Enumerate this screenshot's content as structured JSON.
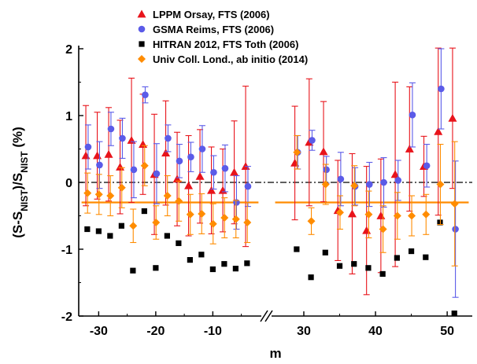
{
  "chart_data": {
    "type": "scatter",
    "title": "",
    "xlabel": "m",
    "ylabel": "(S-S_NIST)/S_NIST (%)",
    "ylabel_parts": {
      "lead": "(S-S",
      "sub1": "NIST",
      "mid": ")/S",
      "sub2": "NIST",
      "tail": " (%)"
    },
    "x_segments": [
      {
        "xlim": [
          -33.5,
          -1.5
        ],
        "ticks": [
          -30,
          -20,
          -10
        ],
        "tick_labels": [
          "-30",
          "-20",
          "-10"
        ]
      },
      {
        "xlim": [
          25.5,
          53.5
        ],
        "ticks": [
          30,
          40,
          50
        ],
        "tick_labels": [
          "30",
          "40",
          "50"
        ]
      }
    ],
    "axis_break": true,
    "ylim": [
      -2,
      2
    ],
    "yticks": [
      -2,
      -1,
      0,
      1,
      2
    ],
    "ytick_labels": [
      "-2",
      "-1",
      "0",
      "1",
      "2"
    ],
    "legend_position": "top-center",
    "reference_line": {
      "y": 0,
      "style": "dash-dot",
      "color": "#000000"
    },
    "mean_lines": [
      {
        "x_range": [
          -33,
          -2
        ],
        "y": -0.3,
        "color": "#FF8C00"
      },
      {
        "x_range": [
          26,
          53
        ],
        "y": -0.3,
        "color": "#FF8C00"
      }
    ],
    "series": [
      {
        "name": "LPPM Orsay,  FTS (2006)",
        "marker": "triangle",
        "color": "#E8141B",
        "x": [
          -32,
          -30,
          -28,
          -26,
          -24,
          -22,
          -20,
          -18,
          -16,
          -14,
          -12,
          -10,
          -8,
          -6,
          -4,
          29,
          31,
          33,
          35,
          37,
          39,
          41,
          43,
          45,
          47,
          49,
          51
        ],
        "y": [
          0.4,
          0.4,
          0.42,
          0.23,
          0.63,
          0.57,
          0.12,
          0.44,
          0.05,
          -0.05,
          0.09,
          -0.12,
          -0.12,
          0.15,
          0.24,
          0.29,
          0.6,
          0.46,
          -0.42,
          -0.47,
          -0.72,
          -0.5,
          0.12,
          0.5,
          0.24,
          0.76,
          0.96
        ],
        "err": [
          0.75,
          0.65,
          0.7,
          0.7,
          0.93,
          0.75,
          0.9,
          0.78,
          0.7,
          0.75,
          0.7,
          0.65,
          0.62,
          0.77,
          1.2,
          0.85,
          0.95,
          0.75,
          0.75,
          0.9,
          0.96,
          0.85,
          1.38,
          0.93,
          0.45,
          1.25,
          1.05
        ]
      },
      {
        "name": "GSMA Reims, FTS (2006)",
        "marker": "circle",
        "color": "#5B5BE8",
        "x": [
          -32,
          -30,
          -28,
          -26,
          -24,
          -22,
          -20,
          -18,
          -16,
          -14,
          -12,
          -10,
          -8,
          -6,
          -4,
          29,
          31,
          33,
          35,
          37,
          39,
          41,
          43,
          45,
          47,
          49,
          51
        ],
        "y": [
          0.53,
          0.26,
          0.8,
          0.66,
          0.19,
          1.31,
          0.13,
          0.66,
          0.32,
          0.38,
          0.5,
          0.15,
          0.21,
          -0.3,
          -0.06,
          0.45,
          0.63,
          0.19,
          0.05,
          -0.06,
          -0.03,
          0.0,
          0.03,
          1.01,
          0.25,
          1.4,
          -0.7
        ],
        "err": [
          0.33,
          0.35,
          0.25,
          0.3,
          0.42,
          0.12,
          0.45,
          0.2,
          0.25,
          0.22,
          0.35,
          0.25,
          0.35,
          0.4,
          0.3,
          0.25,
          0.15,
          0.2,
          0.4,
          0.28,
          0.33,
          0.37,
          0.3,
          0.48,
          0.32,
          0.6,
          1.02
        ]
      },
      {
        "name": "HITRAN 2012, FTS Toth (2006)",
        "marker": "square",
        "color": "#000000",
        "x": [
          -32,
          -30,
          -28,
          -26,
          -24,
          -22,
          -20,
          -18,
          -16,
          -14,
          -12,
          -10,
          -8,
          -6,
          -4,
          29,
          31,
          33,
          35,
          37,
          39,
          41,
          43,
          45,
          47,
          49,
          51
        ],
        "y": [
          -0.7,
          -0.73,
          -0.8,
          -0.65,
          -1.32,
          -0.43,
          -1.28,
          -0.8,
          -0.91,
          -1.16,
          -1.08,
          -1.3,
          -1.22,
          -1.29,
          -1.21,
          -1.0,
          -1.42,
          -1.05,
          -1.25,
          -1.22,
          -1.28,
          -1.37,
          -1.13,
          -1.03,
          -1.12,
          -0.6,
          -1.96
        ]
      },
      {
        "name": "Univ Coll. Lond.,  ab initio (2014)",
        "marker": "diamond",
        "color": "#FF8C00",
        "x": [
          -32,
          -30,
          -28,
          -26,
          -24,
          -22,
          -20,
          -18,
          -16,
          -14,
          -12,
          -10,
          -8,
          -6,
          -4,
          29,
          31,
          33,
          35,
          37,
          39,
          41,
          43,
          45,
          47,
          49,
          51
        ],
        "y": [
          -0.16,
          -0.18,
          -0.2,
          -0.08,
          -0.65,
          0.25,
          -0.6,
          -0.2,
          -0.28,
          -0.48,
          -0.47,
          -0.62,
          -0.53,
          -0.55,
          -0.6,
          0.45,
          -0.58,
          -0.03,
          -0.45,
          -0.05,
          -0.48,
          -0.7,
          -0.5,
          -0.5,
          -0.48,
          -0.03,
          -0.32
        ],
        "err": [
          0.3,
          0.3,
          0.3,
          0.3,
          0.25,
          0.3,
          0.25,
          0.3,
          0.3,
          0.3,
          0.3,
          0.3,
          0.3,
          0.28,
          0.3,
          0.25,
          0.2,
          0.3,
          0.25,
          0.3,
          0.35,
          0.35,
          0.35,
          0.3,
          0.3,
          0.6,
          0.93
        ]
      }
    ]
  }
}
